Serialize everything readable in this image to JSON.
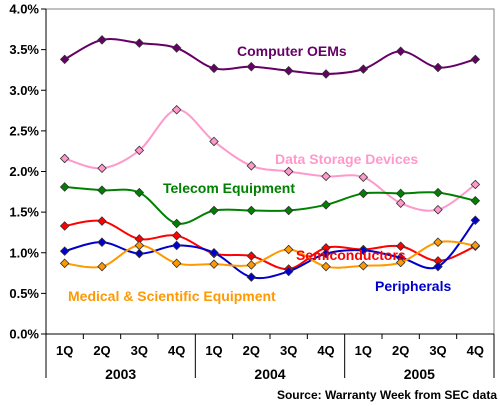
{
  "chart_data": {
    "type": "line",
    "x_quarters": [
      "1Q",
      "2Q",
      "3Q",
      "4Q",
      "1Q",
      "2Q",
      "3Q",
      "4Q",
      "1Q",
      "2Q",
      "3Q",
      "4Q"
    ],
    "years": [
      "2003",
      "2004",
      "2005"
    ],
    "y_ticks": [
      "0.0%",
      "0.5%",
      "1.0%",
      "1.5%",
      "2.0%",
      "2.5%",
      "3.0%",
      "3.5%",
      "4.0%"
    ],
    "ylim": [
      0,
      4.0
    ],
    "grid": false,
    "source": "Source: Warranty Week from SEC data",
    "series": [
      {
        "name": "Computer OEMs",
        "color": "#660066",
        "values": [
          3.38,
          3.62,
          3.58,
          3.52,
          3.27,
          3.29,
          3.24,
          3.2,
          3.26,
          3.48,
          3.28,
          3.38
        ]
      },
      {
        "name": "Data Storage Devices",
        "color": "#ff99cc",
        "values": [
          2.16,
          2.04,
          2.26,
          2.76,
          2.37,
          2.07,
          2.0,
          1.94,
          1.93,
          1.61,
          1.53,
          1.84
        ]
      },
      {
        "name": "Telecom Equipment",
        "color": "#008000",
        "values": [
          1.81,
          1.77,
          1.74,
          1.36,
          1.52,
          1.52,
          1.52,
          1.59,
          1.73,
          1.73,
          1.74,
          1.64
        ]
      },
      {
        "name": "Semiconductors",
        "color": "#ff0000",
        "values": [
          1.33,
          1.39,
          1.17,
          1.21,
          0.99,
          0.96,
          0.8,
          1.06,
          1.04,
          1.08,
          0.9,
          1.08
        ]
      },
      {
        "name": "Peripherals",
        "color": "#0000cc",
        "values": [
          1.02,
          1.13,
          0.99,
          1.09,
          1.0,
          0.7,
          0.77,
          0.99,
          1.03,
          0.94,
          0.83,
          1.4
        ]
      },
      {
        "name": "Medical & Scientific Equipment",
        "color": "#ff9900",
        "values": [
          0.87,
          0.83,
          1.09,
          0.87,
          0.86,
          0.85,
          1.04,
          0.83,
          0.84,
          0.88,
          1.13,
          1.09
        ]
      }
    ]
  }
}
